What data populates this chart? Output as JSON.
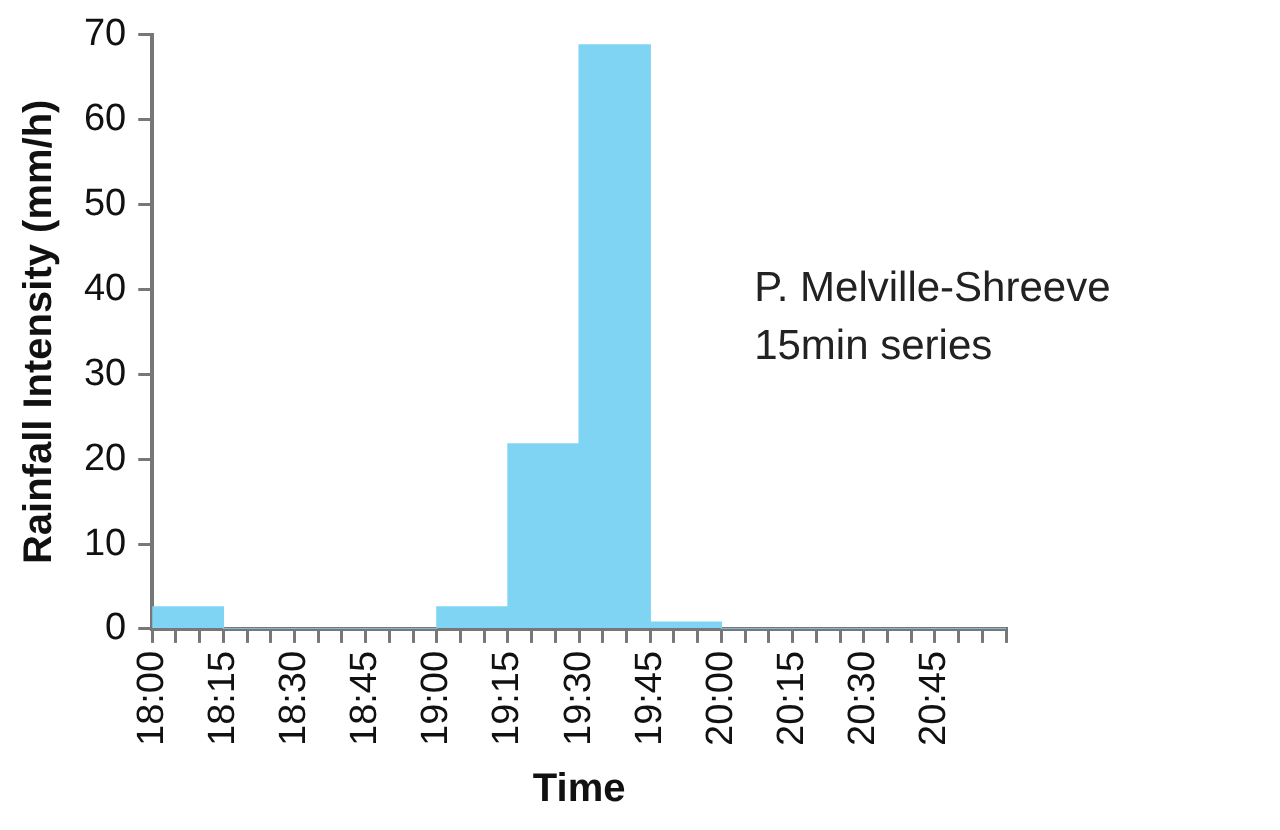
{
  "chart_data": {
    "type": "histogram",
    "bins": [
      18,
      18.25,
      18.5,
      18.75,
      19,
      19.25,
      19.5,
      19.75,
      20,
      20.25,
      20.5,
      20.75,
      21
    ],
    "values": [
      2.6,
      0,
      0,
      0,
      2.6,
      21.8,
      68.8,
      0.8,
      0,
      0,
      0,
      0
    ],
    "color": "#7fd4f4",
    "xlabel": "Time",
    "ylabel": "Rainfall Intensity (mm/h)",
    "xlim": [
      18,
      21
    ],
    "xticks": [
      {
        "value": 18,
        "label": "18:00"
      },
      {
        "value": 18.0833,
        "label": null
      },
      {
        "value": 18.1667,
        "label": null
      },
      {
        "value": 18.25,
        "label": "18:15"
      },
      {
        "value": 18.3333,
        "label": null
      },
      {
        "value": 18.4167,
        "label": null
      },
      {
        "value": 18.5,
        "label": "18:30"
      },
      {
        "value": 18.5833,
        "label": null
      },
      {
        "value": 18.6667,
        "label": null
      },
      {
        "value": 18.75,
        "label": "18:45"
      },
      {
        "value": 18.8333,
        "label": null
      },
      {
        "value": 18.9167,
        "label": null
      },
      {
        "value": 19,
        "label": "19:00"
      },
      {
        "value": 19.0833,
        "label": null
      },
      {
        "value": 19.1667,
        "label": null
      },
      {
        "value": 19.25,
        "label": "19:15"
      },
      {
        "value": 19.3333,
        "label": null
      },
      {
        "value": 19.4167,
        "label": null
      },
      {
        "value": 19.5,
        "label": "19:30"
      },
      {
        "value": 19.5833,
        "label": null
      },
      {
        "value": 19.6667,
        "label": null
      },
      {
        "value": 19.75,
        "label": "19:45"
      },
      {
        "value": 19.8333,
        "label": null
      },
      {
        "value": 19.9167,
        "label": null
      },
      {
        "value": 20,
        "label": "20:00"
      },
      {
        "value": 20.0833,
        "label": null
      },
      {
        "value": 20.1667,
        "label": null
      },
      {
        "value": 20.25,
        "label": "20:15"
      },
      {
        "value": 20.3333,
        "label": null
      },
      {
        "value": 20.4167,
        "label": null
      },
      {
        "value": 20.5,
        "label": "20:30"
      },
      {
        "value": 20.5833,
        "label": null
      },
      {
        "value": 20.6667,
        "label": null
      },
      {
        "value": 20.75,
        "label": "20:45"
      },
      {
        "value": 20.8333,
        "label": null
      },
      {
        "value": 20.9167,
        "label": null
      },
      {
        "value": 21,
        "label": null
      }
    ],
    "ylim": [
      0,
      70
    ],
    "yticks": [
      0,
      10,
      20,
      30,
      40,
      50,
      60,
      70
    ],
    "grid": false,
    "annotations": [
      "P. Melville-Shreeve",
      "15min series"
    ]
  }
}
